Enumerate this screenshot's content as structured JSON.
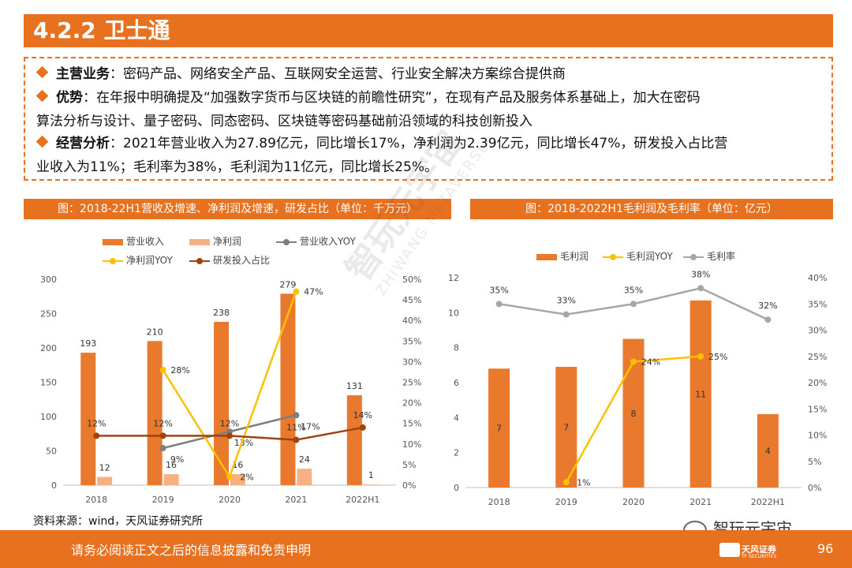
{
  "title": "4.2.2 卫士通",
  "summary": [
    {
      "term": "主营业务",
      "sep": "：",
      "body": "密码产品、网络安全产品、互联网安全运营、行业安全解决方案综合提供商",
      "cont": ""
    },
    {
      "term": "优势",
      "sep": "：",
      "body": "在年报中明确提及“加强数字货币与区块链的前瞻性研究”，在现有产品及服务体系基础上，加大在密码",
      "cont": "算法分析与设计、量子密码、同态密码、区块链等密码基础前沿领域的科技创新投入"
    },
    {
      "term": "经营分析",
      "sep": "：",
      "body": "2021年营业收入为27.89亿元，同比增长17%，净利润为2.39亿元，同比增长47%，研发投入占比营",
      "cont": "业收入为11%；毛利率为38%，毛利润为11亿元，同比增长25%。"
    }
  ],
  "colors": {
    "accent": "#E8711F",
    "bar_dark": "#E8792D",
    "bar_light": "#F5B183",
    "gray": "#7F7F7F",
    "yellow": "#FFC000",
    "brown": "#A0440E",
    "lightgray": "#A6A6A6"
  },
  "left_chart_title": "图：2018-22H1营收及增速、净利润及增速，研发占比（单位：千万元）",
  "right_chart_title": "图：2018-2022H1毛利润及毛利率（单位：亿元）",
  "chart_data": [
    {
      "type": "bar",
      "title": "图：2018-22H1营收及增速、净利润及增速，研发占比（单位：千万元）",
      "categories": [
        "2018",
        "2019",
        "2020",
        "2021",
        "2022H1"
      ],
      "ylim": [
        0,
        300
      ],
      "y2lim": [
        0,
        50
      ],
      "yticks": [
        "0",
        "50",
        "100",
        "150",
        "200",
        "250",
        "300"
      ],
      "y2ticks": [
        "0%",
        "5%",
        "10%",
        "15%",
        "20%",
        "25%",
        "30%",
        "35%",
        "40%",
        "45%",
        "50%"
      ],
      "series": [
        {
          "name": "营业收入",
          "kind": "bar",
          "values": [
            193,
            210,
            238,
            279,
            131
          ],
          "labels": [
            "193",
            "210",
            "238",
            "279",
            "131"
          ]
        },
        {
          "name": "净利润",
          "kind": "bar",
          "values": [
            12,
            16,
            16,
            24,
            1
          ],
          "labels": [
            "12",
            "16",
            "16",
            "24",
            "1"
          ]
        },
        {
          "name": "营业收入YOY",
          "kind": "line",
          "axis": "right",
          "values": [
            null,
            9,
            13,
            17,
            null
          ],
          "labels": [
            "",
            "9%",
            "13%",
            "17%",
            ""
          ]
        },
        {
          "name": "净利润YOY",
          "kind": "line",
          "axis": "right",
          "values": [
            null,
            28,
            2,
            47,
            null
          ],
          "labels": [
            "",
            "28%",
            "2%",
            "47%",
            ""
          ]
        },
        {
          "name": "研发投入占比",
          "kind": "line",
          "axis": "right",
          "values": [
            12,
            12,
            12,
            11,
            14
          ],
          "labels": [
            "12%",
            "12%",
            "12%",
            "11%",
            "14%"
          ]
        }
      ]
    },
    {
      "type": "bar",
      "title": "图：2018-2022H1毛利润及毛利率（单位：亿元）",
      "categories": [
        "2018",
        "2019",
        "2020",
        "2021",
        "2022H1"
      ],
      "ylim": [
        0,
        12
      ],
      "y2lim": [
        0,
        40
      ],
      "yticks": [
        "0",
        "2",
        "4",
        "6",
        "8",
        "10",
        "12"
      ],
      "y2ticks": [
        "0%",
        "5%",
        "10%",
        "15%",
        "20%",
        "25%",
        "30%",
        "35%",
        "40%"
      ],
      "series": [
        {
          "name": "毛利润",
          "kind": "bar",
          "values": [
            6.8,
            6.9,
            8.5,
            10.7,
            4.2
          ],
          "labels": [
            "7",
            "7",
            "8",
            "11",
            "4"
          ]
        },
        {
          "name": "毛利润YOY",
          "kind": "line",
          "axis": "right",
          "values": [
            null,
            1,
            24,
            25,
            null
          ],
          "labels": [
            "",
            "1%",
            "24%",
            "25%",
            ""
          ]
        },
        {
          "name": "毛利率",
          "kind": "line",
          "axis": "right",
          "values": [
            35,
            33,
            35,
            38,
            32
          ],
          "labels": [
            "35%",
            "33%",
            "35%",
            "38%",
            "32%"
          ]
        }
      ]
    }
  ],
  "source": "资料来源：wind，天风证券研究所",
  "footer": "请务必阅读正文之后的信息披露和免责申明",
  "page_number": "96",
  "brand": {
    "name": "天风证券",
    "sub": "TF SECURITIES"
  },
  "wechat_label": "智玩元宇宙",
  "watermark": {
    "cn": "智玩元宇宙",
    "en": "ZHIWANG METAVERSE"
  }
}
